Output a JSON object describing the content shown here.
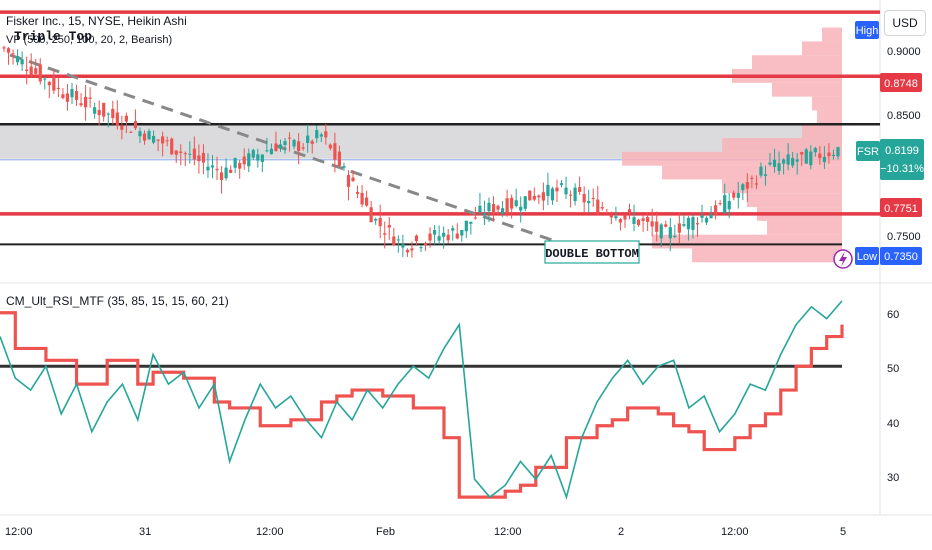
{
  "header": {
    "symbol_line": "Fisker Inc., 15, NYSE, Heikin Ashi",
    "indicator_line": "VP (500, 250, 100, 20, 2, Bearish)",
    "pattern_top": "Triple Top",
    "pattern_bottom": "DOUBLE BOTTOM",
    "currency_button": "USD"
  },
  "price_axis": {
    "ticks": [
      "0.9000",
      "0.8500",
      "0.7500"
    ],
    "high_label": "High",
    "low_label": "Low",
    "low_value": "0.7350",
    "resistance_value": "0.8748",
    "support_value": "0.7751",
    "ticker": "FSR",
    "last_price": "0.8199",
    "change": "−10.31%"
  },
  "rsi_panel": {
    "title": "CM_Ult_RSI_MTF (35, 85, 15, 15, 60, 21)",
    "ticks": [
      "60",
      "50",
      "40",
      "30"
    ]
  },
  "time_axis": {
    "ticks": [
      "12:00",
      "31",
      "12:00",
      "Feb",
      "12:00",
      "2",
      "12:00",
      "5"
    ]
  },
  "colors": {
    "up": "#26a69a",
    "down": "#ef5350",
    "resistance": "#e53945",
    "rsi": "#26a69a",
    "rsi_signal": "#ef5350",
    "volume_profile": "#f8b3b8",
    "zone": "#d5d5d7",
    "high_low_tag": "#2962ff"
  },
  "chart_data": [
    {
      "type": "candlestick",
      "title": "Fisker Inc., 15, NYSE, Heikin Ashi",
      "x_ticks": [
        "12:00",
        "31",
        "12:00",
        "Feb",
        "12:00",
        "2",
        "12:00",
        "5"
      ],
      "y_ticks": [
        0.9,
        0.85,
        0.75
      ],
      "ylim": [
        0.725,
        0.93
      ],
      "horizontal_lines": [
        {
          "value": 0.9212,
          "style": "resistance"
        },
        {
          "value": 0.8748,
          "style": "resistance"
        },
        {
          "value": 0.84,
          "style": "zone-top"
        },
        {
          "value": 0.815,
          "style": "zone-bottom"
        },
        {
          "value": 0.7751,
          "style": "resistance"
        },
        {
          "value": 0.753,
          "style": "support"
        }
      ],
      "close_path": [
        [
          0,
          0.895
        ],
        [
          6,
          0.88
        ],
        [
          12,
          0.865
        ],
        [
          18,
          0.855
        ],
        [
          24,
          0.845
        ],
        [
          30,
          0.835
        ],
        [
          36,
          0.825
        ],
        [
          42,
          0.815
        ],
        [
          48,
          0.805
        ],
        [
          54,
          0.815
        ],
        [
          60,
          0.825
        ],
        [
          66,
          0.825
        ],
        [
          70,
          0.832
        ],
        [
          75,
          0.805
        ],
        [
          82,
          0.77
        ],
        [
          88,
          0.752
        ],
        [
          94,
          0.758
        ],
        [
          100,
          0.762
        ],
        [
          106,
          0.778
        ],
        [
          112,
          0.782
        ],
        [
          118,
          0.79
        ],
        [
          124,
          0.792
        ],
        [
          130,
          0.782
        ],
        [
          136,
          0.774
        ],
        [
          140,
          0.77
        ],
        [
          146,
          0.76
        ],
        [
          150,
          0.768
        ],
        [
          156,
          0.776
        ],
        [
          162,
          0.79
        ],
        [
          168,
          0.808
        ],
        [
          174,
          0.814
        ],
        [
          180,
          0.818
        ],
        [
          184,
          0.822
        ]
      ],
      "volume_profile": [
        {
          "price": 0.905,
          "volume": 20
        },
        {
          "price": 0.895,
          "volume": 40
        },
        {
          "price": 0.885,
          "volume": 90
        },
        {
          "price": 0.875,
          "volume": 110
        },
        {
          "price": 0.865,
          "volume": 70
        },
        {
          "price": 0.855,
          "volume": 30
        },
        {
          "price": 0.845,
          "volume": 25
        },
        {
          "price": 0.835,
          "volume": 40
        },
        {
          "price": 0.825,
          "volume": 120
        },
        {
          "price": 0.815,
          "volume": 220
        },
        {
          "price": 0.805,
          "volume": 180
        },
        {
          "price": 0.795,
          "volume": 120
        },
        {
          "price": 0.785,
          "volume": 95
        },
        {
          "price": 0.775,
          "volume": 85
        },
        {
          "price": 0.765,
          "volume": 75
        },
        {
          "price": 0.755,
          "volume": 190
        },
        {
          "price": 0.745,
          "volume": 150
        }
      ]
    },
    {
      "type": "line",
      "title": "CM_Ult_RSI_MTF (35, 85, 15, 15, 60, 21)",
      "ylim": [
        25,
        64
      ],
      "y_ticks": [
        60,
        50,
        40,
        30
      ],
      "reference_line": 50,
      "series": [
        {
          "values": [
            55,
            48,
            46,
            50,
            42,
            47,
            39,
            44,
            47,
            41,
            52,
            47,
            49,
            43,
            47,
            34,
            41,
            47,
            43,
            45,
            41,
            38,
            44,
            41,
            46,
            43,
            47,
            50,
            48,
            53,
            57,
            31,
            28,
            30,
            34,
            31,
            35,
            28,
            38,
            44,
            48,
            51,
            47,
            50,
            51,
            43,
            45,
            39,
            42,
            47,
            46,
            52,
            57,
            60,
            58,
            61
          ]
        },
        {
          "values": [
            59,
            53,
            53,
            51,
            51,
            47,
            47,
            51,
            51,
            47,
            49,
            49,
            48,
            48,
            44,
            43,
            43,
            40,
            40,
            41,
            41,
            44,
            45,
            46,
            46,
            45,
            45,
            43,
            43,
            38,
            28,
            28,
            28,
            29,
            30,
            33,
            33,
            38,
            38,
            40,
            41,
            43,
            43,
            42,
            40,
            39,
            36,
            36,
            38,
            40,
            42,
            46,
            50,
            53,
            55,
            57
          ]
        }
      ]
    }
  ]
}
